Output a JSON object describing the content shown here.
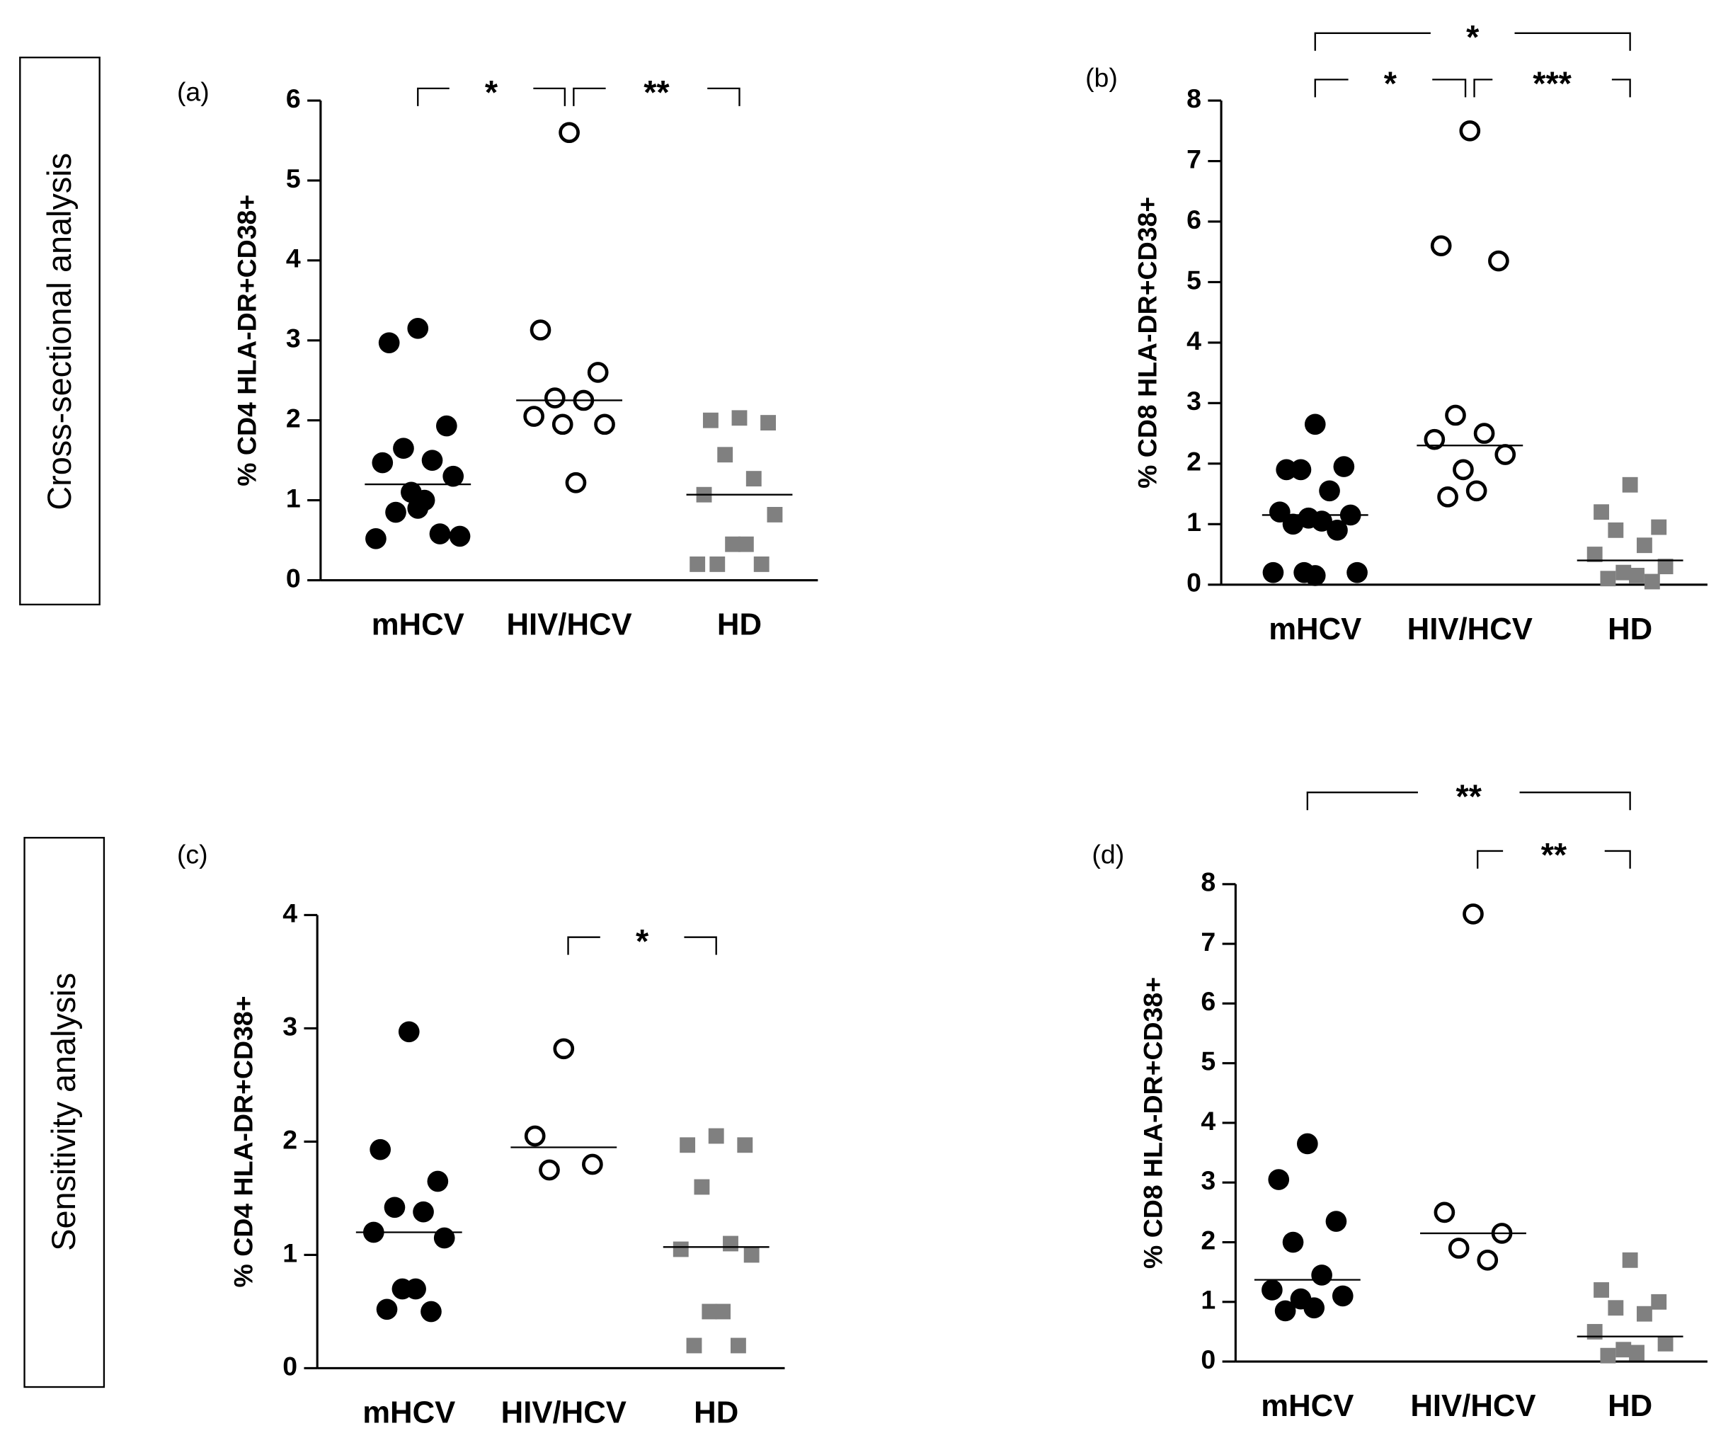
{
  "row_labels": [
    "Cross-sectional analysis",
    "Sensitivity analysis"
  ],
  "chart_data": [
    {
      "type": "strip",
      "panel": "(a)",
      "ylabel": "% CD4 HLA-DR+CD38+",
      "categories": [
        "mHCV",
        "HIV/HCV",
        "HD"
      ],
      "points": [
        [
          3.15,
          2.97,
          1.93,
          1.65,
          1.5,
          1.47,
          1.3,
          1.1,
          1.0,
          0.85,
          0.58,
          0.52,
          0.55,
          0.9
        ],
        [
          5.6,
          3.13,
          2.6,
          2.28,
          2.25,
          2.05,
          1.95,
          1.95,
          1.22
        ],
        [
          2.03,
          2.0,
          1.97,
          1.57,
          1.27,
          1.07,
          0.82,
          0.45,
          0.45,
          0.2,
          0.2,
          0.2
        ]
      ],
      "medians": [
        1.2,
        2.25,
        1.07
      ],
      "markers": [
        "filled-circle",
        "open-circle",
        "square"
      ],
      "colors": [
        "#000000",
        "#000000",
        "#808080"
      ],
      "ylim": [
        0,
        6
      ],
      "yticks": [
        0,
        1,
        2,
        3,
        4,
        5,
        6
      ],
      "brackets": [
        {
          "from": 0,
          "to": 1,
          "label": "*"
        },
        {
          "from": 1,
          "to": 2,
          "label": "**"
        }
      ]
    },
    {
      "type": "strip",
      "panel": "(b)",
      "ylabel": "% CD8 HLA-DR+CD38+",
      "categories": [
        "mHCV",
        "HIV/HCV",
        "HD"
      ],
      "points": [
        [
          2.65,
          1.9,
          1.95,
          1.9,
          1.55,
          1.2,
          1.15,
          1.1,
          1.05,
          1.0,
          0.9,
          0.2,
          0.2,
          0.15,
          0.2
        ],
        [
          7.5,
          5.6,
          5.35,
          2.8,
          2.5,
          2.4,
          2.15,
          1.9,
          1.55,
          1.45
        ],
        [
          1.65,
          1.2,
          0.95,
          0.9,
          0.65,
          0.5,
          0.3,
          0.2,
          0.15,
          0.1,
          0.05
        ]
      ],
      "medians": [
        1.15,
        2.3,
        0.4
      ],
      "markers": [
        "filled-circle",
        "open-circle",
        "square"
      ],
      "colors": [
        "#000000",
        "#000000",
        "#808080"
      ],
      "ylim": [
        0,
        8
      ],
      "yticks": [
        0,
        1,
        2,
        3,
        4,
        5,
        6,
        7,
        8
      ],
      "brackets": [
        {
          "from": 0,
          "to": 2,
          "label": "*"
        },
        {
          "from": 0,
          "to": 1,
          "label": "*"
        },
        {
          "from": 1,
          "to": 2,
          "label": "***"
        }
      ]
    },
    {
      "type": "strip",
      "panel": "(c)",
      "ylabel": "% CD4 HLA-DR+CD38+",
      "categories": [
        "mHCV",
        "HIV/HCV",
        "HD"
      ],
      "points": [
        [
          2.97,
          1.93,
          1.65,
          1.42,
          1.38,
          1.2,
          1.15,
          0.7,
          0.7,
          0.52,
          0.5
        ],
        [
          2.82,
          2.05,
          1.8,
          1.75
        ],
        [
          2.05,
          1.97,
          1.97,
          1.6,
          1.1,
          1.05,
          1.0,
          0.5,
          0.5,
          0.2,
          0.2
        ]
      ],
      "medians": [
        1.2,
        1.95,
        1.07
      ],
      "markers": [
        "filled-circle",
        "open-circle",
        "square"
      ],
      "colors": [
        "#000000",
        "#000000",
        "#808080"
      ],
      "ylim": [
        0,
        4
      ],
      "yticks": [
        0,
        1,
        2,
        3,
        4
      ],
      "brackets": [
        {
          "from": 1,
          "to": 2,
          "label": "*"
        }
      ]
    },
    {
      "type": "strip",
      "panel": "(d)",
      "ylabel": "% CD8 HLA-DR+CD38+",
      "categories": [
        "mHCV",
        "HIV/HCV",
        "HD"
      ],
      "points": [
        [
          3.65,
          3.05,
          2.35,
          2.0,
          1.45,
          1.2,
          1.1,
          1.05,
          0.9,
          0.85
        ],
        [
          7.5,
          2.5,
          2.15,
          1.9,
          1.7
        ],
        [
          1.7,
          1.2,
          1.0,
          0.9,
          0.8,
          0.5,
          0.3,
          0.2,
          0.15,
          0.1
        ]
      ],
      "medians": [
        1.37,
        2.15,
        0.42
      ],
      "markers": [
        "filled-circle",
        "open-circle",
        "square"
      ],
      "colors": [
        "#000000",
        "#000000",
        "#808080"
      ],
      "ylim": [
        0,
        8
      ],
      "yticks": [
        0,
        1,
        2,
        3,
        4,
        5,
        6,
        7,
        8
      ],
      "brackets": [
        {
          "from": 0,
          "to": 2,
          "label": "**"
        },
        {
          "from": 1,
          "to": 2,
          "label": "**"
        }
      ]
    }
  ]
}
